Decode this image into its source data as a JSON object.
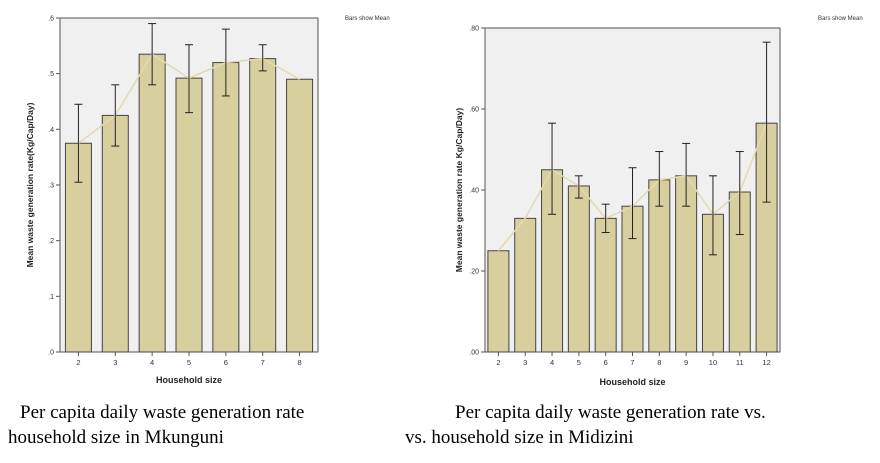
{
  "chart_data": [
    {
      "type": "bar",
      "note": "Bars show Mean",
      "xlabel": "Household size",
      "ylabel": "Mean waste generation rate(Kg/Cap/Day)",
      "categories": [
        "2",
        "3",
        "4",
        "5",
        "6",
        "7",
        "8"
      ],
      "values": [
        0.375,
        0.425,
        0.535,
        0.492,
        0.52,
        0.527,
        0.49
      ],
      "error_low": [
        0.305,
        0.37,
        0.48,
        0.43,
        0.46,
        0.505,
        0.49
      ],
      "error_high": [
        0.445,
        0.48,
        0.59,
        0.552,
        0.58,
        0.552,
        0.49
      ],
      "ylim": [
        0,
        0.6
      ],
      "yticks": [
        0,
        0.1,
        0.2,
        0.3,
        0.4,
        0.5,
        0.6
      ],
      "ytick_labels": [
        ".0",
        ".1",
        ".2",
        ".3",
        ".4",
        ".5",
        ".6"
      ],
      "grid": false,
      "bar_color": "#d8cf9f",
      "line_color": "#e3dab0",
      "background": "#f0f0f0"
    },
    {
      "type": "bar",
      "note": "Bars show Mean",
      "xlabel": "Household size",
      "ylabel": "Mean waste generation rate Kg/Cap/Day)",
      "categories": [
        "2",
        "3",
        "4",
        "5",
        "6",
        "7",
        "8",
        "9",
        "10",
        "11",
        "12"
      ],
      "values": [
        0.25,
        0.33,
        0.45,
        0.41,
        0.33,
        0.36,
        0.425,
        0.435,
        0.34,
        0.395,
        0.565
      ],
      "error_low": [
        0.25,
        0.33,
        0.34,
        0.38,
        0.295,
        0.28,
        0.36,
        0.36,
        0.24,
        0.29,
        0.37
      ],
      "error_high": [
        0.25,
        0.33,
        0.565,
        0.435,
        0.365,
        0.455,
        0.495,
        0.515,
        0.435,
        0.495,
        0.765
      ],
      "ylim": [
        0,
        0.8
      ],
      "yticks": [
        0,
        0.2,
        0.4,
        0.6,
        0.8
      ],
      "ytick_labels": [
        ".00",
        ".20",
        ".40",
        ".60",
        ".80"
      ],
      "grid": false,
      "bar_color": "#d8cf9f",
      "line_color": "#e3dab0",
      "background": "#f0f0f0"
    }
  ],
  "captions": {
    "left_line1": "Per capita daily waste generation rate",
    "left_line2": "household size in Mkunguni",
    "right_line1": "Per capita daily waste generation rate vs.",
    "right_line2": "vs. household size in Midizini"
  }
}
